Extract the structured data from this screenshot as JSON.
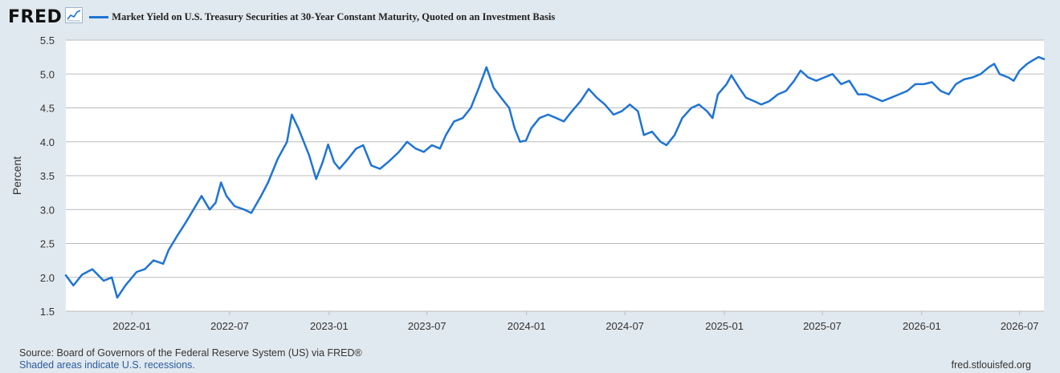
{
  "header": {
    "logo_text": "FRED",
    "series_title": "Market Yield on U.S. Treasury Securities at 30-Year Constant Maturity, Quoted on an Investment Basis"
  },
  "colors": {
    "background": "#e1e9f0",
    "plot_background": "#ffffff",
    "series": "#1f74d3",
    "grid": "#bbbbbb",
    "axis_text": "#333333",
    "link": "#2a5b9e"
  },
  "icons": {
    "logo_chart": "line-chart-icon"
  },
  "footer": {
    "source": "Source: Board of Governors of the Federal Reserve System (US) via FRED®",
    "note": "Shaded areas indicate U.S. recessions.",
    "url": "fred.stlouisfed.org"
  },
  "chart_data": {
    "type": "line",
    "title": "Market Yield on U.S. Treasury Securities at 30-Year Constant Maturity, Quoted on an Investment Basis",
    "ylabel": "Percent",
    "xlabel": "",
    "ylim": [
      1.5,
      5.5
    ],
    "xlim": [
      "2021-09-01",
      "2026-08-15"
    ],
    "y_ticks": [
      1.5,
      2.0,
      2.5,
      3.0,
      3.5,
      4.0,
      4.5,
      5.0,
      5.5
    ],
    "y_tick_labels": [
      "1.5",
      "2.0",
      "2.5",
      "3.0",
      "3.5",
      "4.0",
      "4.5",
      "5.0",
      "5.5"
    ],
    "x_ticks": [
      "2022-01-01",
      "2022-07-01",
      "2023-01-01",
      "2023-07-01",
      "2024-01-01",
      "2024-07-01",
      "2025-01-01",
      "2025-07-01",
      "2026-01-01",
      "2026-07-01"
    ],
    "x_tick_labels": [
      "2022-01",
      "2022-07",
      "2023-01",
      "2023-07",
      "2024-01",
      "2024-07",
      "2025-01",
      "2025-07",
      "2026-01",
      "2026-07"
    ],
    "grid": "horizontal",
    "legend": "top-left",
    "series": [
      {
        "name": "Market Yield on U.S. Treasury Securities at 30-Year Constant Maturity, Quoted on an Investment Basis",
        "points": [
          [
            "2021-09-01",
            2.03
          ],
          [
            "2021-09-15",
            1.88
          ],
          [
            "2021-10-01",
            2.04
          ],
          [
            "2021-10-20",
            2.12
          ],
          [
            "2021-11-10",
            1.95
          ],
          [
            "2021-11-25",
            2.0
          ],
          [
            "2021-12-05",
            1.7
          ],
          [
            "2021-12-20",
            1.88
          ],
          [
            "2022-01-10",
            2.08
          ],
          [
            "2022-01-25",
            2.12
          ],
          [
            "2022-02-10",
            2.25
          ],
          [
            "2022-02-28",
            2.2
          ],
          [
            "2022-03-10",
            2.4
          ],
          [
            "2022-03-25",
            2.6
          ],
          [
            "2022-04-10",
            2.8
          ],
          [
            "2022-04-25",
            3.0
          ],
          [
            "2022-05-10",
            3.2
          ],
          [
            "2022-05-25",
            3.0
          ],
          [
            "2022-06-05",
            3.1
          ],
          [
            "2022-06-15",
            3.4
          ],
          [
            "2022-06-25",
            3.2
          ],
          [
            "2022-07-10",
            3.05
          ],
          [
            "2022-07-28",
            3.0
          ],
          [
            "2022-08-10",
            2.95
          ],
          [
            "2022-08-28",
            3.2
          ],
          [
            "2022-09-10",
            3.4
          ],
          [
            "2022-09-28",
            3.75
          ],
          [
            "2022-10-15",
            4.0
          ],
          [
            "2022-10-24",
            4.4
          ],
          [
            "2022-11-05",
            4.2
          ],
          [
            "2022-11-15",
            4.0
          ],
          [
            "2022-11-25",
            3.8
          ],
          [
            "2022-12-08",
            3.45
          ],
          [
            "2022-12-20",
            3.7
          ],
          [
            "2022-12-30",
            3.96
          ],
          [
            "2023-01-10",
            3.7
          ],
          [
            "2023-01-20",
            3.6
          ],
          [
            "2023-02-05",
            3.75
          ],
          [
            "2023-02-20",
            3.9
          ],
          [
            "2023-03-05",
            3.95
          ],
          [
            "2023-03-20",
            3.65
          ],
          [
            "2023-04-05",
            3.6
          ],
          [
            "2023-04-20",
            3.7
          ],
          [
            "2023-05-10",
            3.85
          ],
          [
            "2023-05-25",
            4.0
          ],
          [
            "2023-06-10",
            3.9
          ],
          [
            "2023-06-25",
            3.85
          ],
          [
            "2023-07-10",
            3.95
          ],
          [
            "2023-07-25",
            3.9
          ],
          [
            "2023-08-05",
            4.1
          ],
          [
            "2023-08-20",
            4.3
          ],
          [
            "2023-09-05",
            4.35
          ],
          [
            "2023-09-20",
            4.5
          ],
          [
            "2023-10-05",
            4.8
          ],
          [
            "2023-10-19",
            5.1
          ],
          [
            "2023-11-01",
            4.8
          ],
          [
            "2023-11-15",
            4.65
          ],
          [
            "2023-11-30",
            4.5
          ],
          [
            "2023-12-10",
            4.2
          ],
          [
            "2023-12-20",
            4.0
          ],
          [
            "2023-12-31",
            4.02
          ],
          [
            "2024-01-10",
            4.2
          ],
          [
            "2024-01-25",
            4.35
          ],
          [
            "2024-02-10",
            4.4
          ],
          [
            "2024-02-25",
            4.35
          ],
          [
            "2024-03-10",
            4.3
          ],
          [
            "2024-03-25",
            4.45
          ],
          [
            "2024-04-10",
            4.6
          ],
          [
            "2024-04-25",
            4.78
          ],
          [
            "2024-05-10",
            4.65
          ],
          [
            "2024-05-25",
            4.55
          ],
          [
            "2024-06-10",
            4.4
          ],
          [
            "2024-06-25",
            4.45
          ],
          [
            "2024-07-10",
            4.55
          ],
          [
            "2024-07-25",
            4.45
          ],
          [
            "2024-08-05",
            4.1
          ],
          [
            "2024-08-20",
            4.15
          ],
          [
            "2024-09-05",
            4.0
          ],
          [
            "2024-09-16",
            3.95
          ],
          [
            "2024-10-01",
            4.1
          ],
          [
            "2024-10-15",
            4.35
          ],
          [
            "2024-11-01",
            4.5
          ],
          [
            "2024-11-15",
            4.55
          ],
          [
            "2024-11-30",
            4.45
          ],
          [
            "2024-12-10",
            4.35
          ],
          [
            "2024-12-20",
            4.7
          ],
          [
            "2025-01-05",
            4.85
          ],
          [
            "2025-01-14",
            4.98
          ],
          [
            "2025-01-28",
            4.8
          ],
          [
            "2025-02-10",
            4.65
          ],
          [
            "2025-02-25",
            4.6
          ],
          [
            "2025-03-10",
            4.55
          ],
          [
            "2025-03-25",
            4.6
          ],
          [
            "2025-04-10",
            4.7
          ],
          [
            "2025-04-25",
            4.75
          ],
          [
            "2025-05-10",
            4.9
          ],
          [
            "2025-05-22",
            5.05
          ],
          [
            "2025-06-05",
            4.95
          ],
          [
            "2025-06-20",
            4.9
          ],
          [
            "2025-07-05",
            4.95
          ],
          [
            "2025-07-20",
            5.0
          ],
          [
            "2025-08-05",
            4.85
          ],
          [
            "2025-08-20",
            4.9
          ],
          [
            "2025-09-05",
            4.7
          ],
          [
            "2025-09-20",
            4.7
          ],
          [
            "2025-10-05",
            4.65
          ],
          [
            "2025-10-20",
            4.6
          ],
          [
            "2025-11-05",
            4.65
          ],
          [
            "2025-11-20",
            4.7
          ],
          [
            "2025-12-05",
            4.75
          ],
          [
            "2025-12-20",
            4.85
          ],
          [
            "2026-01-05",
            4.85
          ],
          [
            "2026-01-20",
            4.88
          ],
          [
            "2026-02-05",
            4.75
          ],
          [
            "2026-02-20",
            4.7
          ],
          [
            "2026-03-05",
            4.85
          ],
          [
            "2026-03-20",
            4.92
          ],
          [
            "2026-04-05",
            4.95
          ],
          [
            "2026-04-20",
            5.0
          ],
          [
            "2026-05-05",
            5.1
          ],
          [
            "2026-05-15",
            5.15
          ],
          [
            "2026-05-25",
            5.0
          ],
          [
            "2026-06-10",
            4.95
          ],
          [
            "2026-06-20",
            4.9
          ],
          [
            "2026-07-01",
            5.05
          ],
          [
            "2026-07-15",
            5.15
          ],
          [
            "2026-07-25",
            5.2
          ],
          [
            "2026-08-05",
            5.25
          ],
          [
            "2026-08-15",
            5.22
          ]
        ]
      }
    ]
  }
}
